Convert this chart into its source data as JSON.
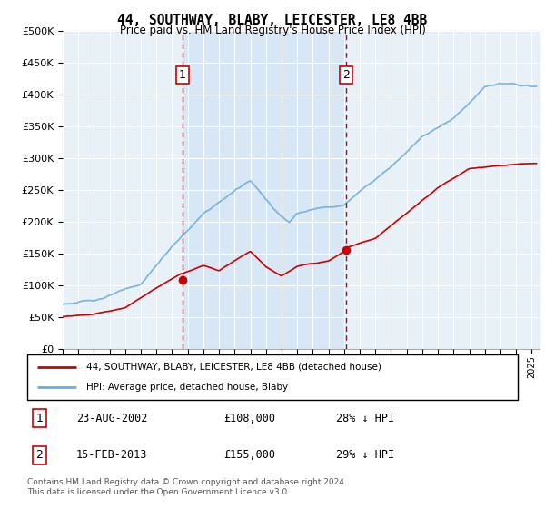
{
  "title": "44, SOUTHWAY, BLABY, LEICESTER, LE8 4BB",
  "subtitle": "Price paid vs. HM Land Registry's House Price Index (HPI)",
  "ylabel_ticks": [
    "£0",
    "£50K",
    "£100K",
    "£150K",
    "£200K",
    "£250K",
    "£300K",
    "£350K",
    "£400K",
    "£450K",
    "£500K"
  ],
  "ylim": [
    0,
    500000
  ],
  "xlim_start": 1995.0,
  "xlim_end": 2025.5,
  "sale1_x": 2002.644,
  "sale1_y": 108000,
  "sale1_label": "1",
  "sale2_x": 2013.12,
  "sale2_y": 155000,
  "sale2_label": "2",
  "legend_line1": "44, SOUTHWAY, BLABY, LEICESTER, LE8 4BB (detached house)",
  "legend_line2": "HPI: Average price, detached house, Blaby",
  "table_row1": [
    "1",
    "23-AUG-2002",
    "£108,000",
    "28% ↓ HPI"
  ],
  "table_row2": [
    "2",
    "15-FEB-2013",
    "£155,000",
    "29% ↓ HPI"
  ],
  "footnote": "Contains HM Land Registry data © Crown copyright and database right 2024.\nThis data is licensed under the Open Government Licence v3.0.",
  "hpi_color": "#6baed6",
  "price_color": "#cc0000",
  "vline_color": "#cc0000",
  "bg_chart_color": "#e8f0f8",
  "shade_color": "#d0e4f4",
  "grid_color": "#ffffff",
  "border_color": "#aaaaaa"
}
